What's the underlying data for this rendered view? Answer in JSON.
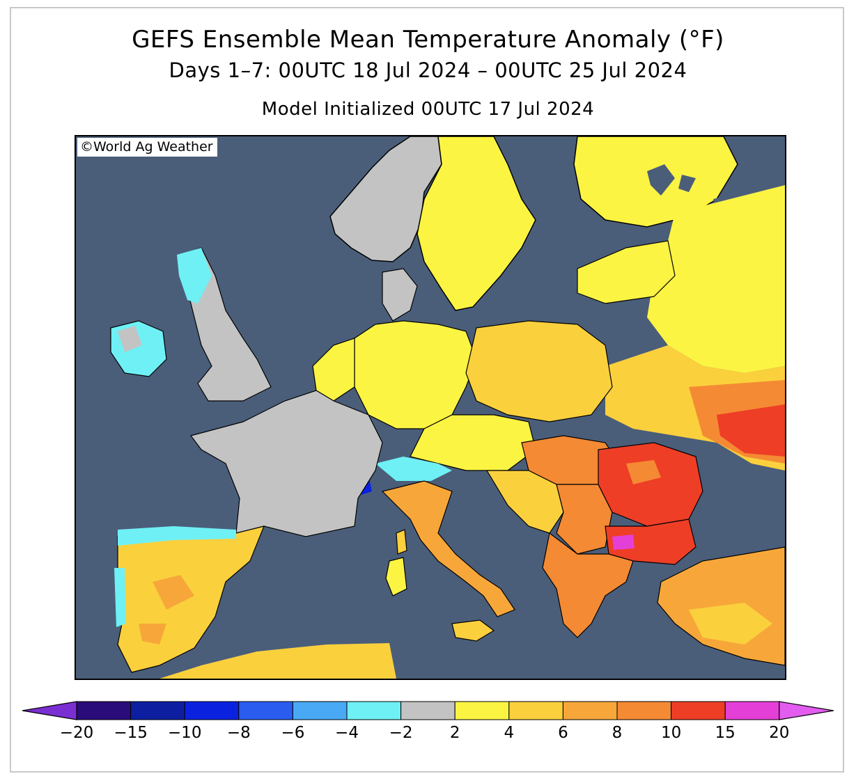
{
  "title": "GEFS Ensemble Mean Temperature Anomaly (°F)",
  "subtitle": "Days 1–7: 00UTC 18 Jul 2024 – 00UTC 25 Jul 2024",
  "init": "Model Initialized 00UTC 17 Jul 2024",
  "copyright": "©World Ag Weather",
  "map": {
    "region": "Europe",
    "unit": "°F",
    "colors": {
      "ocean": "#4a5e7a",
      "lt_minus2": "#6ff0f5",
      "neutral": "#c3c3c3",
      "c2_4": "#fcf443",
      "c4_6": "#fbd03d",
      "c6_8": "#f7a73a",
      "c8_10": "#f48a33",
      "c10_15": "#ee3e26",
      "c15_20": "#e43fd6"
    }
  },
  "legend": {
    "ticks": [
      "−20",
      "−15",
      "−10",
      "−8",
      "−6",
      "−4",
      "−2",
      "2",
      "4",
      "6",
      "8",
      "10",
      "15",
      "20"
    ],
    "colors": [
      "#7a2fd2",
      "#2a0b7a",
      "#0d1fa0",
      "#0a22e0",
      "#2a5cf0",
      "#4aa9f5",
      "#6ff0f5",
      "#c3c3c3",
      "#fcf443",
      "#fbd03d",
      "#f7a73a",
      "#f48a33",
      "#ee3e26",
      "#e43fd6",
      "#e35cf0"
    ]
  }
}
